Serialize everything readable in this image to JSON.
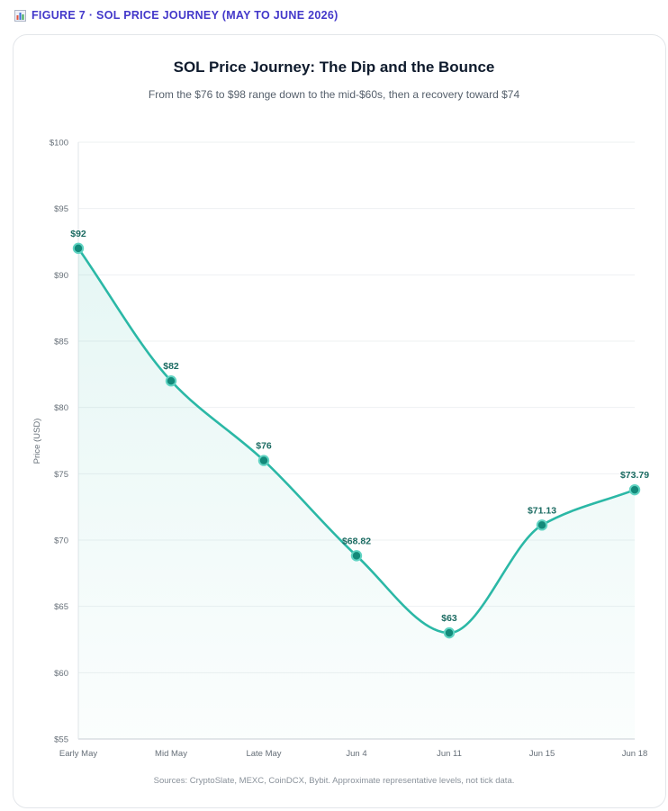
{
  "figure_label": "FIGURE 7 · SOL PRICE JOURNEY (MAY TO JUNE 2026)",
  "figure_icon": "bar-chart-icon",
  "sources": "Sources: CryptoSlate, MEXC, CoinDCX, Bybit. Approximate representative levels, not tick data.",
  "colors": {
    "line": "#2bb8a6",
    "point": "#138a7a",
    "label": "#1b6b62",
    "accent": "#4338ca"
  },
  "chart_data": {
    "type": "line",
    "title": "SOL Price Journey: The Dip and the Bounce",
    "subtitle": "From the $76 to $98 range down to the mid-$60s, then a recovery toward $74",
    "xlabel": "",
    "ylabel": "Price (USD)",
    "categories": [
      "Early May",
      "Mid May",
      "Late May",
      "Jun 4",
      "Jun 11",
      "Jun 15",
      "Jun 18"
    ],
    "values": [
      92,
      82,
      76,
      68.82,
      63,
      71.13,
      73.79
    ],
    "data_labels": [
      "$92",
      "$82",
      "$76",
      "$68.82",
      "$63",
      "$71.13",
      "$73.79"
    ],
    "ylim": [
      55,
      100
    ],
    "yticks": [
      55,
      60,
      65,
      70,
      75,
      80,
      85,
      90,
      95,
      100
    ],
    "ytick_labels": [
      "$55",
      "$60",
      "$65",
      "$70",
      "$75",
      "$80",
      "$85",
      "$90",
      "$95",
      "$100"
    ],
    "grid": true,
    "smooth": true,
    "area_fill": true
  }
}
